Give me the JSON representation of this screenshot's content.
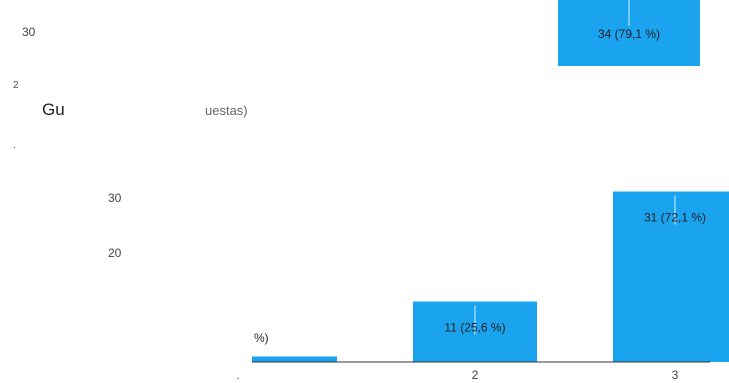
{
  "colors": {
    "bar": "#1aa3ef",
    "axis": "#333333",
    "grid": "#e0e0e0",
    "leader": "#888888"
  },
  "fragments": {
    "title_start": "Gu",
    "title_end": "uestas)",
    "stray_1": "2",
    "stray_2": ".",
    "stray_3": "'"
  },
  "chart_data": [
    {
      "type": "bar",
      "partial": true,
      "y_ticks": [
        "30"
      ],
      "bars": [
        {
          "category": "",
          "value": 34,
          "label": "34 (79,1 %)"
        }
      ]
    },
    {
      "type": "bar",
      "categories": [
        "1",
        "2",
        "3"
      ],
      "x_tick_labels": [
        ".",
        "2",
        "3"
      ],
      "values": [
        1,
        11,
        31
      ],
      "data_labels": [
        "%)",
        "11 (25,6 %)",
        "31 (72,1 %)"
      ],
      "y_ticks": [
        "20",
        "30"
      ],
      "ylim": [
        0,
        33
      ],
      "grid": false
    }
  ]
}
